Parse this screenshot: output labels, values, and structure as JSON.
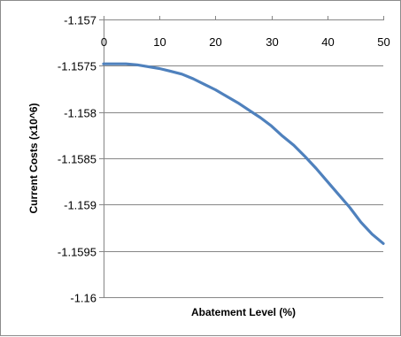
{
  "chart_data": {
    "type": "line",
    "title": "",
    "xlabel": "Abatement Level (%)",
    "ylabel": "Current Costs (x10^6)",
    "xlim": [
      0,
      50
    ],
    "ylim": [
      -1.16,
      -1.157
    ],
    "x_ticks": [
      0,
      10,
      20,
      30,
      40,
      50
    ],
    "y_ticks": [
      -1.157,
      -1.1575,
      -1.158,
      -1.1585,
      -1.159,
      -1.1595,
      -1.16
    ],
    "grid": "horizontal",
    "legend": "none",
    "series": [
      {
        "color": "#4f81bd",
        "x": [
          0,
          2,
          4,
          6,
          8,
          10,
          12,
          14,
          16,
          18,
          20,
          22,
          24,
          26,
          28,
          30,
          32,
          34,
          36,
          38,
          40,
          42,
          44,
          46,
          48,
          50
        ],
        "values": [
          -1.15748,
          -1.15748,
          -1.15748,
          -1.15749,
          -1.15751,
          -1.15753,
          -1.15756,
          -1.15759,
          -1.15764,
          -1.1577,
          -1.15776,
          -1.15783,
          -1.1579,
          -1.15798,
          -1.15806,
          -1.15815,
          -1.15826,
          -1.15836,
          -1.15848,
          -1.15861,
          -1.15875,
          -1.15889,
          -1.15903,
          -1.15919,
          -1.15932,
          -1.15942
        ]
      }
    ]
  }
}
